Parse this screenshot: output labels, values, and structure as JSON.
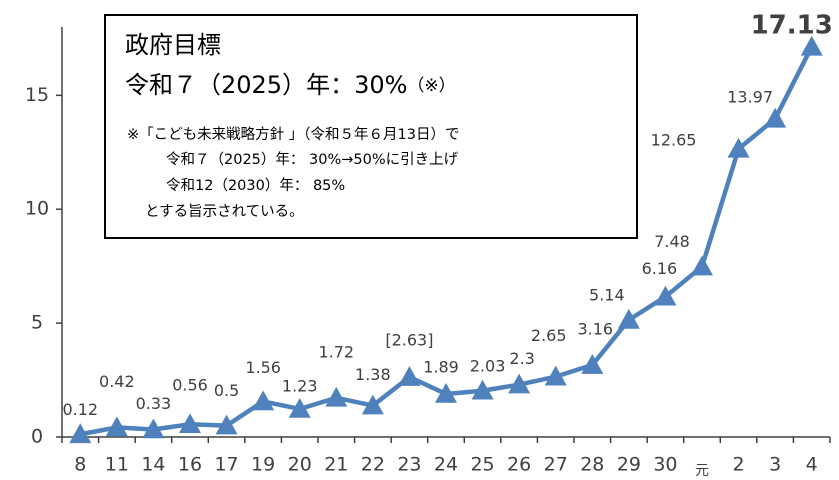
{
  "chart_data": {
    "type": "line",
    "categories": [
      "8",
      "11",
      "14",
      "16",
      "17",
      "19",
      "20",
      "21",
      "22",
      "23",
      "24",
      "25",
      "26",
      "27",
      "28",
      "29",
      "30",
      "元",
      "2",
      "3",
      "4"
    ],
    "values": [
      0.12,
      0.42,
      0.33,
      0.56,
      0.5,
      1.56,
      1.23,
      1.72,
      1.38,
      2.63,
      1.89,
      2.03,
      2.3,
      2.65,
      3.16,
      5.14,
      6.16,
      7.48,
      12.65,
      13.97,
      17.13
    ],
    "value_labels": [
      "0.12",
      "0.42",
      "0.33",
      "0.56",
      "0.5",
      "1.56",
      "1.23",
      "1.72",
      "1.38",
      "[2.63]",
      "1.89",
      "2.03",
      "2.3",
      "2.65",
      "3.16",
      "5.14",
      "6.16",
      "7.48",
      "12.65",
      "13.97",
      "17.13"
    ],
    "color": "#4f81bd",
    "ylim": [
      0,
      18
    ],
    "yticks": [
      0,
      5,
      10,
      15
    ],
    "annotation": {
      "title": "政府目標",
      "target": "令和７（2025）年：30%",
      "target_mark": "（※）",
      "note": [
        "※「こども未来戦略方針 」（令和５年６月13日）で",
        "令和７（2025）年：  30%→50%に引き上げ",
        "令和12（2030）年： 85%",
        "とする旨示されている。"
      ]
    }
  }
}
